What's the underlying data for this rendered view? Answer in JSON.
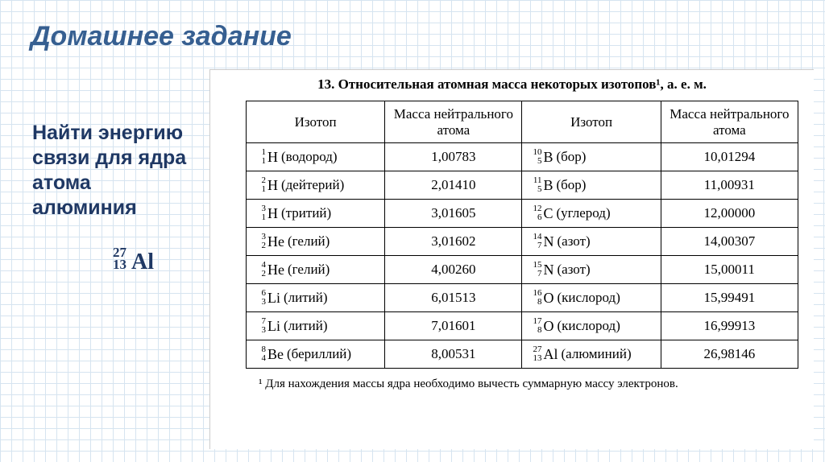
{
  "title": "Домашнее задание",
  "assignment_text": "Найти энергию связи для ядра атома алюминия",
  "al_isotope": {
    "mass": "27",
    "z": "13",
    "symbol": "Al"
  },
  "caption": "13. Относительная атомная масса некоторых изотопов¹, а. е. м.",
  "headers": {
    "isotope": "Изотоп",
    "mass": "Масса нейтрального атома"
  },
  "rows": [
    {
      "l": {
        "a": "1",
        "z": "1",
        "sym": "H",
        "name": "(водород)"
      },
      "lm": "1,00783",
      "r": {
        "a": "10",
        "z": "5",
        "sym": "B",
        "name": "(бор)"
      },
      "rm": "10,01294"
    },
    {
      "l": {
        "a": "2",
        "z": "1",
        "sym": "H",
        "name": "(дейтерий)"
      },
      "lm": "2,01410",
      "r": {
        "a": "11",
        "z": "5",
        "sym": "B",
        "name": "(бор)"
      },
      "rm": "11,00931"
    },
    {
      "l": {
        "a": "3",
        "z": "1",
        "sym": "H",
        "name": "(тритий)"
      },
      "lm": "3,01605",
      "r": {
        "a": "12",
        "z": "6",
        "sym": "C",
        "name": "(углерод)"
      },
      "rm": "12,00000"
    },
    {
      "l": {
        "a": "3",
        "z": "2",
        "sym": "He",
        "name": "(гелий)"
      },
      "lm": "3,01602",
      "r": {
        "a": "14",
        "z": "7",
        "sym": "N",
        "name": "(азот)"
      },
      "rm": "14,00307"
    },
    {
      "l": {
        "a": "4",
        "z": "2",
        "sym": "He",
        "name": "(гелий)"
      },
      "lm": "4,00260",
      "r": {
        "a": "15",
        "z": "7",
        "sym": "N",
        "name": "(азот)"
      },
      "rm": "15,00011"
    },
    {
      "l": {
        "a": "6",
        "z": "3",
        "sym": "Li",
        "name": "(литий)"
      },
      "lm": "6,01513",
      "r": {
        "a": "16",
        "z": "8",
        "sym": "O",
        "name": "(кислород)"
      },
      "rm": "15,99491"
    },
    {
      "l": {
        "a": "7",
        "z": "3",
        "sym": "Li",
        "name": "(литий)"
      },
      "lm": "7,01601",
      "r": {
        "a": "17",
        "z": "8",
        "sym": "O",
        "name": "(кислород)"
      },
      "rm": "16,99913"
    },
    {
      "l": {
        "a": "8",
        "z": "4",
        "sym": "Be",
        "name": "(бериллий)"
      },
      "lm": "8,00531",
      "r": {
        "a": "27",
        "z": "13",
        "sym": "Al",
        "name": "(алюминий)"
      },
      "rm": "26,98146"
    }
  ],
  "footnote": "¹ Для нахождения массы ядра необходимо вычесть суммарную массу электронов.",
  "col_widths": {
    "iso": "170px",
    "mass": "168px"
  },
  "colors": {
    "title": "#365f91",
    "assignment": "#1f3864",
    "grid": "#d6e4f0",
    "border": "#000000"
  }
}
